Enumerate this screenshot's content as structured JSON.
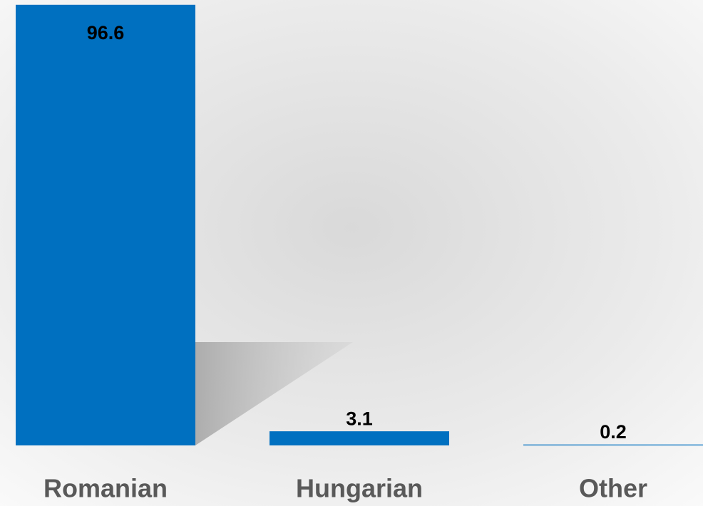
{
  "chart_data": {
    "type": "bar",
    "categories": [
      "Romanian",
      "Hungarian",
      "Other"
    ],
    "values": [
      96.6,
      3.1,
      0.2
    ],
    "color": "#0070c0",
    "ylim": [
      0,
      100
    ]
  }
}
